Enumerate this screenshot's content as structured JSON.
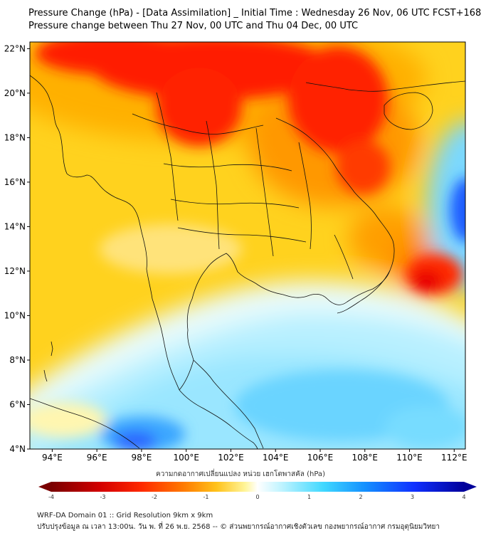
{
  "header": {
    "title_line1": "Pressure Change (hPa) - [Data Assimilation] _ Initial Time : Wednesday 26 Nov, 06 UTC FCST+168",
    "title_line2": "Pressure change between Thu 27 Nov, 00 UTC and Thu 04 Dec, 00 UTC"
  },
  "map": {
    "lat_labels": [
      "22°N",
      "20°N",
      "18°N",
      "16°N",
      "14°N",
      "12°N",
      "10°N",
      "8°N",
      "6°N",
      "4°N"
    ],
    "lon_labels": [
      "94°E",
      "96°E",
      "98°E",
      "100°E",
      "102°E",
      "104°E",
      "106°E",
      "108°E",
      "110°E",
      "112°E"
    ],
    "lat_range": [
      4,
      22.3
    ],
    "lon_range": [
      93,
      112.5
    ]
  },
  "colorbar": {
    "label": "ความกดอากาศเปลี่ยนแปลง หน่วย เฮกโตพาสคัล (hPa)",
    "ticks": [
      "-4",
      "-3",
      "-2",
      "-1",
      "0",
      "1",
      "2",
      "3",
      "4"
    ],
    "range": [
      -4,
      4
    ],
    "colors": [
      "#7a0000",
      "#d40000",
      "#ff2a00",
      "#ff7a00",
      "#ffc21a",
      "#fff59a",
      "#ffffff",
      "#bdf3ff",
      "#40d8ff",
      "#1490ff",
      "#1030ff",
      "#00009a"
    ]
  },
  "footer": {
    "line1": "WRF-DA Domain 01 :: Grid Resolution 9km x 9km",
    "line2": "ปรับปรุงข้อมูล ณ เวลา 13:00น. วัน พ. ที่ 26 พ.ย. 2568 -- © ส่วนพยากรณ์อากาศเชิงตัวเลข กองพยากรณ์อากาศ กรมอุตุนิยมวิทยา"
  }
}
